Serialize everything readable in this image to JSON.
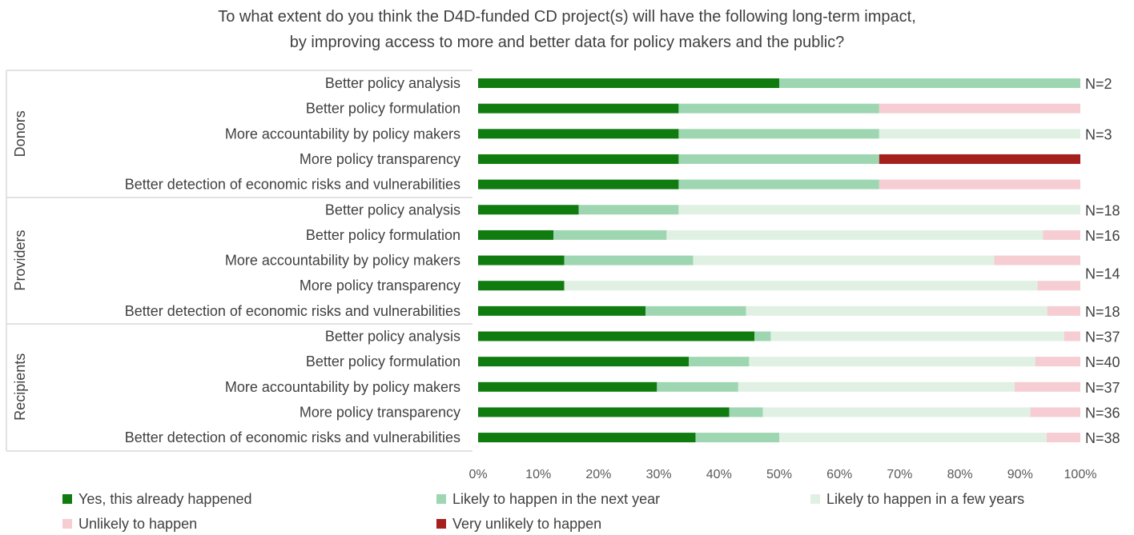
{
  "chart_data": {
    "type": "bar",
    "orientation": "horizontal",
    "stacked": true,
    "title": [
      "To what extent do you think the D4D-funded CD project(s) will have the following long-term impact,",
      "by improving access to more and better data for policy makers and the public?"
    ],
    "xlim": [
      0,
      100
    ],
    "x_ticks": [
      "0%",
      "10%",
      "20%",
      "30%",
      "40%",
      "50%",
      "60%",
      "70%",
      "80%",
      "90%",
      "100%"
    ],
    "grid": false,
    "legend_position": "bottom",
    "series": [
      {
        "name": "Yes, this already happened",
        "color": "#107c10"
      },
      {
        "name": "Likely to happen in the next year",
        "color": "#9fd6b2"
      },
      {
        "name": "Likely to happen in a few years",
        "color": "#e0f1e4"
      },
      {
        "name": "Unlikely to happen",
        "color": "#f6cdd3"
      },
      {
        "name": "Very unlikely to happen",
        "color": "#a5201c"
      }
    ],
    "groups": [
      {
        "name": "Donors",
        "categories": [
          "Better policy analysis",
          "Better policy formulation",
          "More accountability by policy makers",
          "More policy transparency",
          "Better detection of economic risks and vulnerabilities"
        ],
        "values": [
          [
            50,
            50,
            0,
            0,
            0
          ],
          [
            33.3,
            33.3,
            0,
            33.4,
            0
          ],
          [
            33.3,
            33.3,
            33.4,
            0,
            0
          ],
          [
            33.3,
            33.3,
            0,
            0,
            33.4
          ],
          [
            33.3,
            33.3,
            0,
            33.4,
            0
          ]
        ]
      },
      {
        "name": "Providers",
        "categories": [
          "Better policy analysis",
          "Better policy formulation",
          "More accountability by policy makers",
          "More policy transparency",
          "Better detection of economic risks and vulnerabilities"
        ],
        "values": [
          [
            16.7,
            16.6,
            66.7,
            0,
            0
          ],
          [
            12.5,
            18.8,
            62.5,
            6.2,
            0
          ],
          [
            14.3,
            21.4,
            50,
            14.3,
            0
          ],
          [
            14.3,
            0,
            78.6,
            7.1,
            0
          ],
          [
            27.8,
            16.7,
            50,
            5.5,
            0
          ]
        ]
      },
      {
        "name": "Recipients",
        "categories": [
          "Better policy analysis",
          "Better policy formulation",
          "More accountability by policy makers",
          "More policy transparency",
          "Better detection of economic risks and vulnerabilities"
        ],
        "values": [
          [
            45.9,
            2.7,
            48.7,
            2.7,
            0
          ],
          [
            35,
            10,
            47.5,
            7.5,
            0
          ],
          [
            29.7,
            13.5,
            45.9,
            10.9,
            0
          ],
          [
            41.7,
            5.6,
            44.4,
            8.3,
            0
          ],
          [
            36.1,
            13.9,
            44.4,
            5.6,
            0
          ]
        ]
      }
    ],
    "annotations": [
      {
        "text": "N=2",
        "row": 0
      },
      {
        "text": "N=3",
        "row": 2
      },
      {
        "text": "N=18",
        "row": 5
      },
      {
        "text": "N=16",
        "row": 6
      },
      {
        "text": "N=14",
        "row": 7.5
      },
      {
        "text": "N=18",
        "row": 9
      },
      {
        "text": "N=37",
        "row": 10
      },
      {
        "text": "N=40",
        "row": 11
      },
      {
        "text": "N=37",
        "row": 12
      },
      {
        "text": "N=36",
        "row": 13
      },
      {
        "text": "N=38",
        "row": 14
      }
    ]
  }
}
